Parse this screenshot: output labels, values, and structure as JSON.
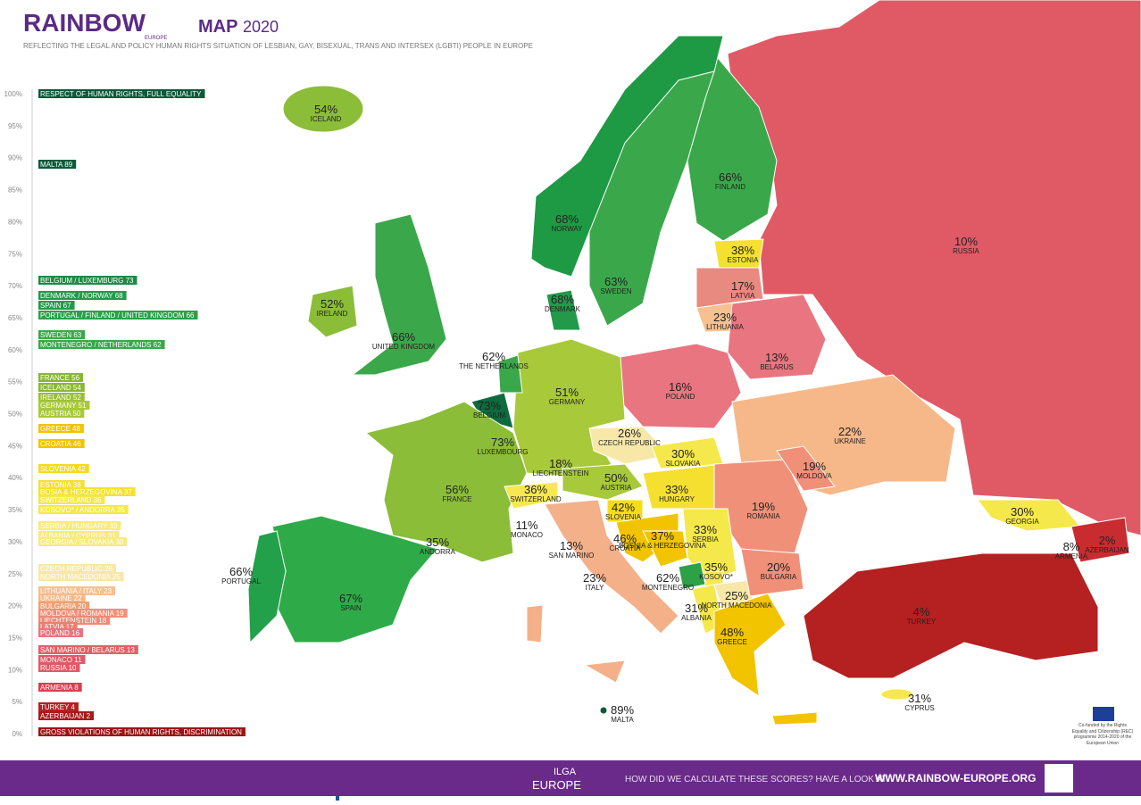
{
  "header": {
    "brand": "RAINBOW",
    "brand_sub": "EUROPE",
    "map": "MAP",
    "year": "2020",
    "subtitle": "REFLECTING THE LEGAL AND POLICY HUMAN RIGHTS SITUATION OF LESBIAN, GAY, BISEXUAL, TRANS AND INTERSEX (LGBTI) PEOPLE IN EUROPE"
  },
  "scale": [
    "100%",
    "95%",
    "90%",
    "85%",
    "80%",
    "75%",
    "70%",
    "65%",
    "60%",
    "55%",
    "50%",
    "45%",
    "40%",
    "35%",
    "30%",
    "25%",
    "20%",
    "15%",
    "10%",
    "5%",
    "0%"
  ],
  "legend": [
    {
      "label": "RESPECT OF HUMAN RIGHTS, FULL EQUALITY",
      "color": "#0b5a3a"
    },
    {
      "label": "MALTA 89",
      "color": "#0b5a3a"
    },
    {
      "label": "BELGIUM / LUXEMBURG 73",
      "color": "#1e8a46"
    },
    {
      "label": "DENMARK / NORWAY 68",
      "color": "#229a4a"
    },
    {
      "label": "SPAIN 67",
      "color": "#229a4a"
    },
    {
      "label": "PORTUGAL / FINLAND / UNITED KINGDOM 66",
      "color": "#2ca048"
    },
    {
      "label": "SWEDEN 63",
      "color": "#3aa84a"
    },
    {
      "label": "MONTENEGRO / NETHERLANDS 62",
      "color": "#3aa84a"
    },
    {
      "label": "FRANCE 56",
      "color": "#8ab833"
    },
    {
      "label": "ICELAND 54",
      "color": "#8ab833"
    },
    {
      "label": "IRELAND 52",
      "color": "#9abf38"
    },
    {
      "label": "GERMANY 51",
      "color": "#a8c93a"
    },
    {
      "label": "AUSTRIA 50",
      "color": "#a8c93a"
    },
    {
      "label": "GREECE 48",
      "color": "#f2c400"
    },
    {
      "label": "CROATIA 46",
      "color": "#f2c400"
    },
    {
      "label": "SLOVENIA 42",
      "color": "#f5dc1a"
    },
    {
      "label": "ESTONIA 38",
      "color": "#f5e030"
    },
    {
      "label": "BOSIA & HERZEGOVINA 37",
      "color": "#f5e030"
    },
    {
      "label": "SWITZERLAND 36",
      "color": "#f5e84a"
    },
    {
      "label": "KOSOVO* / ANDORRA 35",
      "color": "#f5e84a"
    },
    {
      "label": "SERBIA / HUNGARY  33",
      "color": "#f7eb7a"
    },
    {
      "label": "ALBANIA / CYPRUS 31",
      "color": "#f7eb7a"
    },
    {
      "label": "GEORGIA / SLOVAKIA 30",
      "color": "#f7eb7a"
    },
    {
      "label": "CZECH REPUBLIC 26",
      "color": "#f7e8a8"
    },
    {
      "label": "NORTH MACEDONIA 25",
      "color": "#f7e8a8"
    },
    {
      "label": "LITHUANIA / ITALY 23",
      "color": "#f6c090"
    },
    {
      "label": "UKRAINE 22",
      "color": "#f6b888"
    },
    {
      "label": "BULGARIA 20",
      "color": "#f0a070"
    },
    {
      "label": "MOLDOVA / ROMANIA 19",
      "color": "#f09078"
    },
    {
      "label": "LIECHTENSTEIN 18",
      "color": "#ec8a78"
    },
    {
      "label": "LATVIA 17",
      "color": "#e88070"
    },
    {
      "label": "POLAND 16",
      "color": "#e97580"
    },
    {
      "label": "SAN MARINO / BELARUS 13",
      "color": "#e06068"
    },
    {
      "label": "MONACO 11",
      "color": "#e05a66"
    },
    {
      "label": "RUSSIA 10",
      "color": "#e05a66"
    },
    {
      "label": "ARMENIA 8",
      "color": "#d84050"
    },
    {
      "label": "TURKEY 4",
      "color": "#b52020"
    },
    {
      "label": "AZERBAIJAN 2",
      "color": "#a81a1a"
    },
    {
      "label": "GROSS VIOLATIONS OF HUMAN RIGHTS, DISCRIMINATION",
      "color": "#9b1414"
    }
  ],
  "countries": [
    {
      "pct": "54%",
      "name": "ICELAND"
    },
    {
      "pct": "68%",
      "name": "NORWAY"
    },
    {
      "pct": "63%",
      "name": "SWEDEN"
    },
    {
      "pct": "66%",
      "name": "FINLAND"
    },
    {
      "pct": "10%",
      "name": "RUSSIA"
    },
    {
      "pct": "38%",
      "name": "ESTONIA"
    },
    {
      "pct": "17%",
      "name": "LATVIA"
    },
    {
      "pct": "68%",
      "name": "DENMARK"
    },
    {
      "pct": "52%",
      "name": "IRELAND"
    },
    {
      "pct": "66%",
      "name": "UNITED KINGDOM"
    },
    {
      "pct": "23%",
      "name": "LITHUANIA"
    },
    {
      "pct": "13%",
      "name": "BELARUS"
    },
    {
      "pct": "62%",
      "name": "THE NETHERLANDS"
    },
    {
      "pct": "16%",
      "name": "POLAND"
    },
    {
      "pct": "73%",
      "name": "BELGIUM"
    },
    {
      "pct": "51%",
      "name": "GERMANY"
    },
    {
      "pct": "73%",
      "name": "LUXEMBOURG"
    },
    {
      "pct": "22%",
      "name": "UKRAINE"
    },
    {
      "pct": "26%",
      "name": "CZECH REPUBLIC"
    },
    {
      "pct": "30%",
      "name": "SLOVAKIA"
    },
    {
      "pct": "18%",
      "name": "LIECHTENSTEIN"
    },
    {
      "pct": "19%",
      "name": "MOLDOVA"
    },
    {
      "pct": "56%",
      "name": "FRANCE"
    },
    {
      "pct": "36%",
      "name": "SWITZERLAND"
    },
    {
      "pct": "50%",
      "name": "AUSTRIA"
    },
    {
      "pct": "33%",
      "name": "HUNGARY"
    },
    {
      "pct": "19%",
      "name": "ROMANIA"
    },
    {
      "pct": "30%",
      "name": "GEORGIA"
    },
    {
      "pct": "42%",
      "name": "SLOVENIA"
    },
    {
      "pct": "11%",
      "name": "MONACO"
    },
    {
      "pct": "33%",
      "name": "SERBIA"
    },
    {
      "pct": "37%",
      "name": "BOSNIA & HERZEGOVINA"
    },
    {
      "pct": "46%",
      "name": "CROATIA"
    },
    {
      "pct": "13%",
      "name": "SAN MARINO"
    },
    {
      "pct": "35%",
      "name": "ANDORRA"
    },
    {
      "pct": "8%",
      "name": "ARMENIA"
    },
    {
      "pct": "2%",
      "name": "AZERBAIJAN"
    },
    {
      "pct": "35%",
      "name": "KOSOVO*"
    },
    {
      "pct": "20%",
      "name": "BULGARIA"
    },
    {
      "pct": "66%",
      "name": "PORTUGAL"
    },
    {
      "pct": "62%",
      "name": "MONTENEGRO"
    },
    {
      "pct": "23%",
      "name": "ITALY"
    },
    {
      "pct": "67%",
      "name": "SPAIN"
    },
    {
      "pct": "25%",
      "name": "NORTH MACEDONIA"
    },
    {
      "pct": "4%",
      "name": "TURKEY"
    },
    {
      "pct": "31%",
      "name": "ALBANIA"
    },
    {
      "pct": "48%",
      "name": "GREECE"
    },
    {
      "pct": "31%",
      "name": "CYPRUS"
    },
    {
      "pct": "89%",
      "name": "MALTA"
    }
  ],
  "footer": {
    "ilga": "ILGA",
    "ilga_sub": "EUROPE",
    "prompt": "HOW DID WE CALCULATE THESE SCORES? HAVE A LOOK AT",
    "url": "WWW.RAINBOW-EUROPE.ORG",
    "eu_note": "Co-funded by the Rights Equality and Citizenship (REC) programme 2014-2020 of the European Union"
  }
}
